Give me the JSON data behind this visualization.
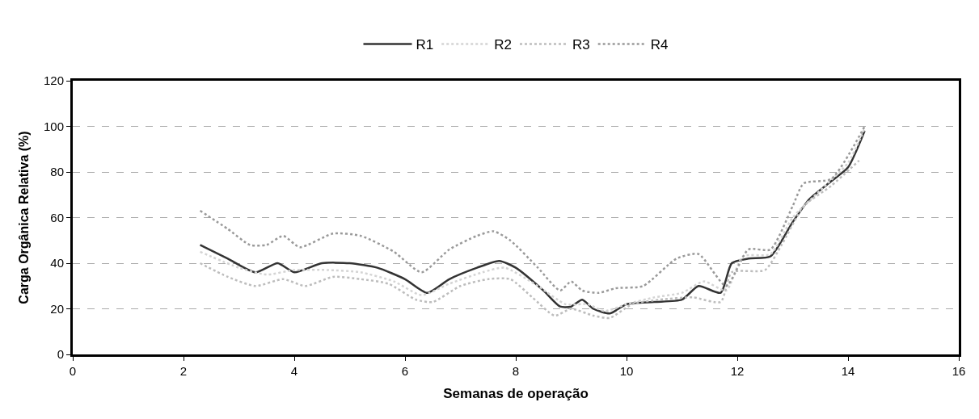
{
  "chart_data": {
    "type": "line",
    "xlabel": "Semanas de operação",
    "ylabel": "Carga Orgânica Relativa (%)",
    "xlim": [
      0,
      16
    ],
    "xticks": [
      0,
      2,
      4,
      6,
      8,
      10,
      12,
      14,
      16
    ],
    "ylim": [
      0,
      120
    ],
    "yticks": [
      0,
      20,
      40,
      60,
      80,
      100,
      120
    ],
    "grid": "y",
    "legend": "top",
    "marker": "none",
    "series": [
      {
        "name": "R1",
        "color": "#333333",
        "line_style": "solid",
        "x": [
          2.3,
          2.8,
          3.3,
          3.7,
          4.0,
          4.5,
          5.0,
          5.5,
          6.0,
          6.4,
          6.8,
          7.3,
          7.7,
          8.0,
          8.5,
          8.8,
          9.0,
          9.2,
          9.4,
          9.7,
          10.0,
          10.5,
          11.0,
          11.3,
          11.7,
          11.9,
          12.2,
          12.6,
          13.0,
          13.3,
          13.7,
          14.0,
          14.3
        ],
        "values": [
          48,
          42,
          36,
          40,
          36,
          40,
          40,
          38,
          33,
          27,
          33,
          38,
          41,
          38,
          28,
          21,
          21,
          24,
          20,
          18,
          22,
          23,
          24,
          30,
          27,
          40,
          42,
          43,
          58,
          68,
          76,
          82,
          98
        ]
      },
      {
        "name": "R2",
        "color": "#d4d4d4",
        "line_style": "dotted",
        "x": [
          2.3,
          3.0,
          3.5,
          4.0,
          4.6,
          5.2,
          5.8,
          6.3,
          6.8,
          7.4,
          7.8,
          8.4,
          8.9,
          9.3,
          9.6,
          10.0,
          10.5,
          11.0,
          11.4,
          11.8,
          12.1,
          12.6,
          13.0,
          13.5,
          14.0,
          14.3
        ],
        "values": [
          45,
          38,
          35,
          37,
          37,
          36,
          32,
          26,
          31,
          36,
          38,
          30,
          22,
          22,
          19,
          22,
          25,
          27,
          32,
          28,
          43,
          44,
          60,
          72,
          84,
          99
        ]
      },
      {
        "name": "R3",
        "color": "#bdbdbd",
        "line_style": "dotted",
        "x": [
          2.3,
          2.8,
          3.3,
          3.8,
          4.2,
          4.7,
          5.2,
          5.7,
          6.2,
          6.5,
          7.0,
          7.5,
          7.9,
          8.3,
          8.7,
          9.0,
          9.4,
          9.7,
          10.1,
          10.6,
          11.2,
          11.7,
          11.9,
          12.5,
          12.8,
          13.2,
          13.7,
          14.2
        ],
        "values": [
          40,
          34,
          30,
          33,
          30,
          34,
          33,
          31,
          24,
          23,
          30,
          33,
          33,
          25,
          17,
          20,
          17,
          16,
          22,
          24,
          25,
          23,
          36,
          37,
          48,
          65,
          74,
          85
        ]
      },
      {
        "name": "R4",
        "color": "#9a9a9a",
        "line_style": "dotted",
        "x": [
          2.3,
          2.8,
          3.2,
          3.5,
          3.8,
          4.1,
          4.7,
          5.2,
          5.8,
          6.3,
          6.8,
          7.3,
          7.6,
          7.9,
          8.4,
          8.8,
          9.0,
          9.2,
          9.5,
          9.8,
          10.3,
          10.9,
          11.3,
          11.8,
          12.2,
          12.6,
          13.0,
          13.2,
          13.7,
          14.3
        ],
        "values": [
          63,
          55,
          48,
          48,
          52,
          47,
          53,
          52,
          45,
          36,
          46,
          52,
          54,
          50,
          38,
          28,
          32,
          28,
          27,
          29,
          30,
          42,
          44,
          30,
          46,
          46,
          65,
          75,
          77,
          100
        ]
      }
    ]
  }
}
